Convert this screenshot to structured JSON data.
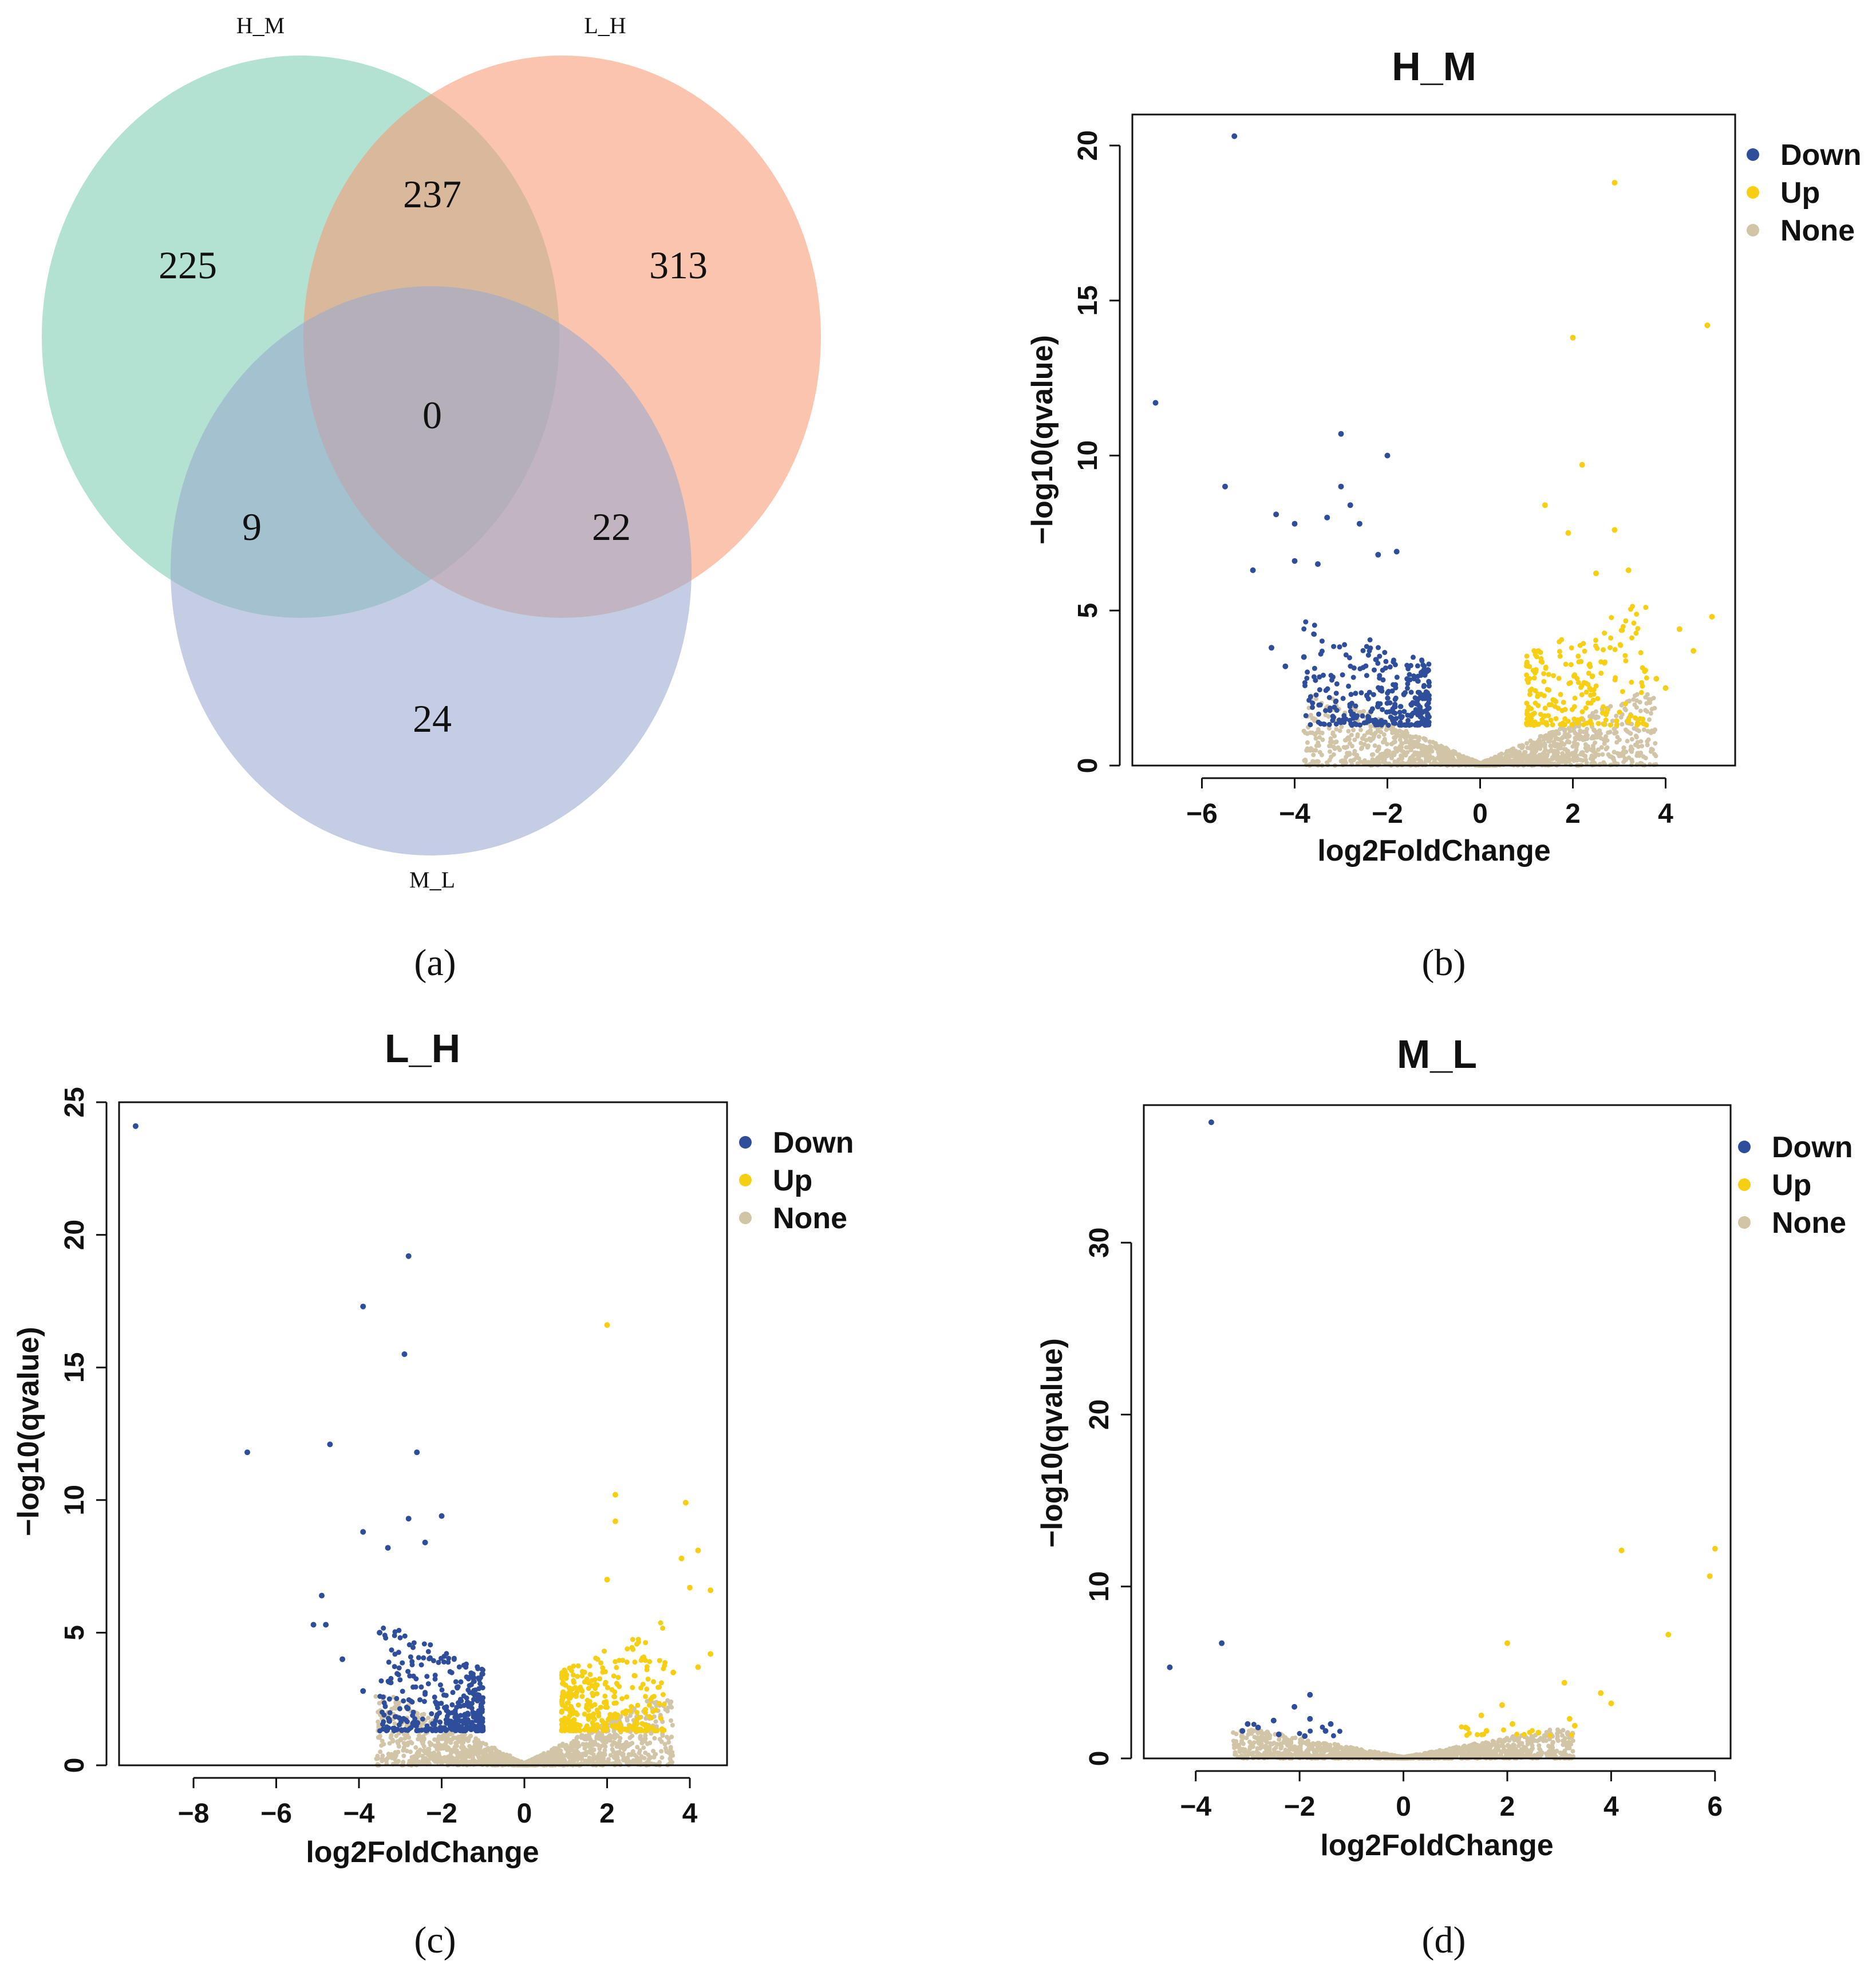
{
  "panel_labels": [
    "(a)",
    "(b)",
    "(c)",
    "(d)"
  ],
  "colors": {
    "down": "#2e4d9a",
    "up": "#f7cf12",
    "none": "#d2c4a6",
    "venn_H_M": "#7ccdb1",
    "venn_L_H": "#f79a76",
    "venn_M_L": "#9aa8cf"
  },
  "chart_data": [
    {
      "type": "venn",
      "sets": [
        "H_M",
        "L_H",
        "M_L"
      ],
      "regions": {
        "H_M_only": "225",
        "L_H_only": "313",
        "M_L_only": "24",
        "H_M_and_L_H": "237",
        "H_M_and_M_L": "9",
        "L_H_and_M_L": "22",
        "all_three": "0"
      }
    },
    {
      "type": "scatter",
      "title": "H_M",
      "xlabel": "log2FoldChange",
      "ylabel": "−log10(qvalue)",
      "xlim": [
        -7.5,
        5.5
      ],
      "ylim": [
        0,
        21
      ],
      "xticks": [
        -6,
        -4,
        -2,
        0,
        2,
        4
      ],
      "yticks": [
        0,
        5,
        10,
        15,
        20
      ],
      "legend": [
        "Down",
        "Up",
        "None"
      ],
      "legend_position": "right",
      "outliers": {
        "down": [
          [
            -5.3,
            20.3
          ],
          [
            -7.0,
            11.7
          ],
          [
            -3.0,
            10.7
          ],
          [
            -2.0,
            10.0
          ],
          [
            -5.5,
            9.0
          ],
          [
            -3.0,
            9.0
          ],
          [
            -2.8,
            8.4
          ],
          [
            -4.0,
            7.8
          ],
          [
            -4.4,
            8.1
          ],
          [
            -3.3,
            8.0
          ],
          [
            -2.6,
            7.8
          ],
          [
            -4.9,
            6.3
          ],
          [
            -4.0,
            6.6
          ],
          [
            -3.5,
            6.5
          ],
          [
            -2.2,
            6.8
          ],
          [
            -1.8,
            6.9
          ],
          [
            -4.5,
            3.8
          ],
          [
            -4.2,
            3.2
          ],
          [
            -3.8,
            3.5
          ]
        ],
        "up": [
          [
            2.9,
            18.8
          ],
          [
            4.9,
            14.2
          ],
          [
            2.0,
            13.8
          ],
          [
            2.2,
            9.7
          ],
          [
            1.4,
            8.4
          ],
          [
            2.9,
            7.6
          ],
          [
            1.9,
            7.5
          ],
          [
            3.2,
            6.3
          ],
          [
            2.5,
            6.2
          ],
          [
            4.6,
            3.7
          ],
          [
            4.3,
            4.4
          ],
          [
            5.0,
            4.8
          ],
          [
            4.0,
            2.5
          ],
          [
            3.8,
            2.8
          ]
        ]
      },
      "clusters": [
        {
          "class": "down",
          "n": 320,
          "xmin": -3.8,
          "xmax": -1.1,
          "ymin": 1.3,
          "ymax": 5.0
        },
        {
          "class": "up",
          "n": 230,
          "xmin": 1.0,
          "xmax": 3.6,
          "ymin": 1.3,
          "ymax": 5.5
        },
        {
          "class": "none",
          "n": 1500,
          "xmax": 3.8,
          "ymax": 2.3
        }
      ]
    },
    {
      "type": "scatter",
      "title": "L_H",
      "xlabel": "log2FoldChange",
      "ylabel": "−log10(qvalue)",
      "xlim": [
        -9.8,
        4.9
      ],
      "ylim": [
        0,
        25
      ],
      "xticks": [
        -8,
        -6,
        -4,
        -2,
        0,
        2,
        4
      ],
      "yticks": [
        0,
        5,
        10,
        15,
        20,
        25
      ],
      "legend": [
        "Down",
        "Up",
        "None"
      ],
      "legend_position": "right",
      "outliers": {
        "down": [
          [
            -9.4,
            24.1
          ],
          [
            -2.8,
            19.2
          ],
          [
            -3.9,
            17.3
          ],
          [
            -2.9,
            15.5
          ],
          [
            -4.7,
            12.1
          ],
          [
            -6.7,
            11.8
          ],
          [
            -2.6,
            11.8
          ],
          [
            -2.0,
            9.4
          ],
          [
            -2.8,
            9.3
          ],
          [
            -3.9,
            8.8
          ],
          [
            -3.3,
            8.2
          ],
          [
            -2.4,
            8.4
          ],
          [
            -4.9,
            6.4
          ],
          [
            -5.1,
            5.3
          ],
          [
            -4.8,
            5.3
          ],
          [
            -4.4,
            4.0
          ],
          [
            -3.9,
            2.8
          ],
          [
            -3.5,
            5.0
          ]
        ],
        "up": [
          [
            2.0,
            16.6
          ],
          [
            2.2,
            10.2
          ],
          [
            3.9,
            9.9
          ],
          [
            2.2,
            9.2
          ],
          [
            4.2,
            8.1
          ],
          [
            3.8,
            7.8
          ],
          [
            4.5,
            6.6
          ],
          [
            4.0,
            6.7
          ],
          [
            2.0,
            7.0
          ],
          [
            4.5,
            4.2
          ],
          [
            4.2,
            3.7
          ],
          [
            3.6,
            3.5
          ]
        ]
      },
      "clusters": [
        {
          "class": "down",
          "n": 360,
          "xmin": -3.5,
          "xmax": -1.0,
          "ymin": 1.3,
          "ymax": 5.5
        },
        {
          "class": "up",
          "n": 330,
          "xmin": 0.9,
          "xmax": 3.4,
          "ymin": 1.3,
          "ymax": 5.5
        },
        {
          "class": "none",
          "n": 1600,
          "xmax": 3.6,
          "ymax": 2.6
        }
      ]
    },
    {
      "type": "scatter",
      "title": "M_L",
      "xlabel": "log2FoldChange",
      "ylabel": "−log10(qvalue)",
      "xlim": [
        -5.0,
        6.3
      ],
      "ylim": [
        0,
        38
      ],
      "xticks": [
        -4,
        -2,
        0,
        2,
        4,
        6
      ],
      "yticks": [
        0,
        10,
        20,
        30
      ],
      "legend": [
        "Down",
        "Up",
        "None"
      ],
      "legend_position": "right",
      "outliers": {
        "down": [
          [
            -3.7,
            37.0
          ],
          [
            -3.5,
            6.7
          ],
          [
            -4.5,
            5.3
          ],
          [
            -1.8,
            3.7
          ],
          [
            -2.1,
            3.0
          ],
          [
            -3.0,
            2.0
          ],
          [
            -2.8,
            1.8
          ],
          [
            -2.5,
            2.2
          ],
          [
            -1.5,
            1.6
          ],
          [
            -1.9,
            1.3
          ],
          [
            -2.4,
            1.4
          ],
          [
            -1.4,
            2.0
          ],
          [
            -1.8,
            2.3
          ],
          [
            -3.1,
            1.6
          ]
        ],
        "up": [
          [
            6.0,
            12.2
          ],
          [
            4.2,
            12.1
          ],
          [
            5.9,
            10.6
          ],
          [
            5.1,
            7.2
          ],
          [
            2.0,
            6.7
          ],
          [
            4.0,
            3.2
          ],
          [
            3.8,
            3.8
          ],
          [
            1.9,
            3.1
          ],
          [
            3.1,
            4.4
          ],
          [
            3.2,
            2.3
          ],
          [
            1.5,
            2.5
          ],
          [
            2.1,
            2.0
          ],
          [
            1.2,
            1.8
          ],
          [
            1.6,
            1.6
          ],
          [
            2.6,
            1.5
          ],
          [
            3.3,
            1.9
          ]
        ]
      },
      "clusters": [
        {
          "class": "down",
          "n": 6,
          "xmin": -3.0,
          "xmax": -1.2,
          "ymin": 1.3,
          "ymax": 2.2
        },
        {
          "class": "up",
          "n": 14,
          "xmin": 1.1,
          "xmax": 3.4,
          "ymin": 1.3,
          "ymax": 2.4
        },
        {
          "class": "none",
          "n": 1500,
          "xmax": 3.3,
          "ymax": 1.7
        }
      ]
    }
  ]
}
